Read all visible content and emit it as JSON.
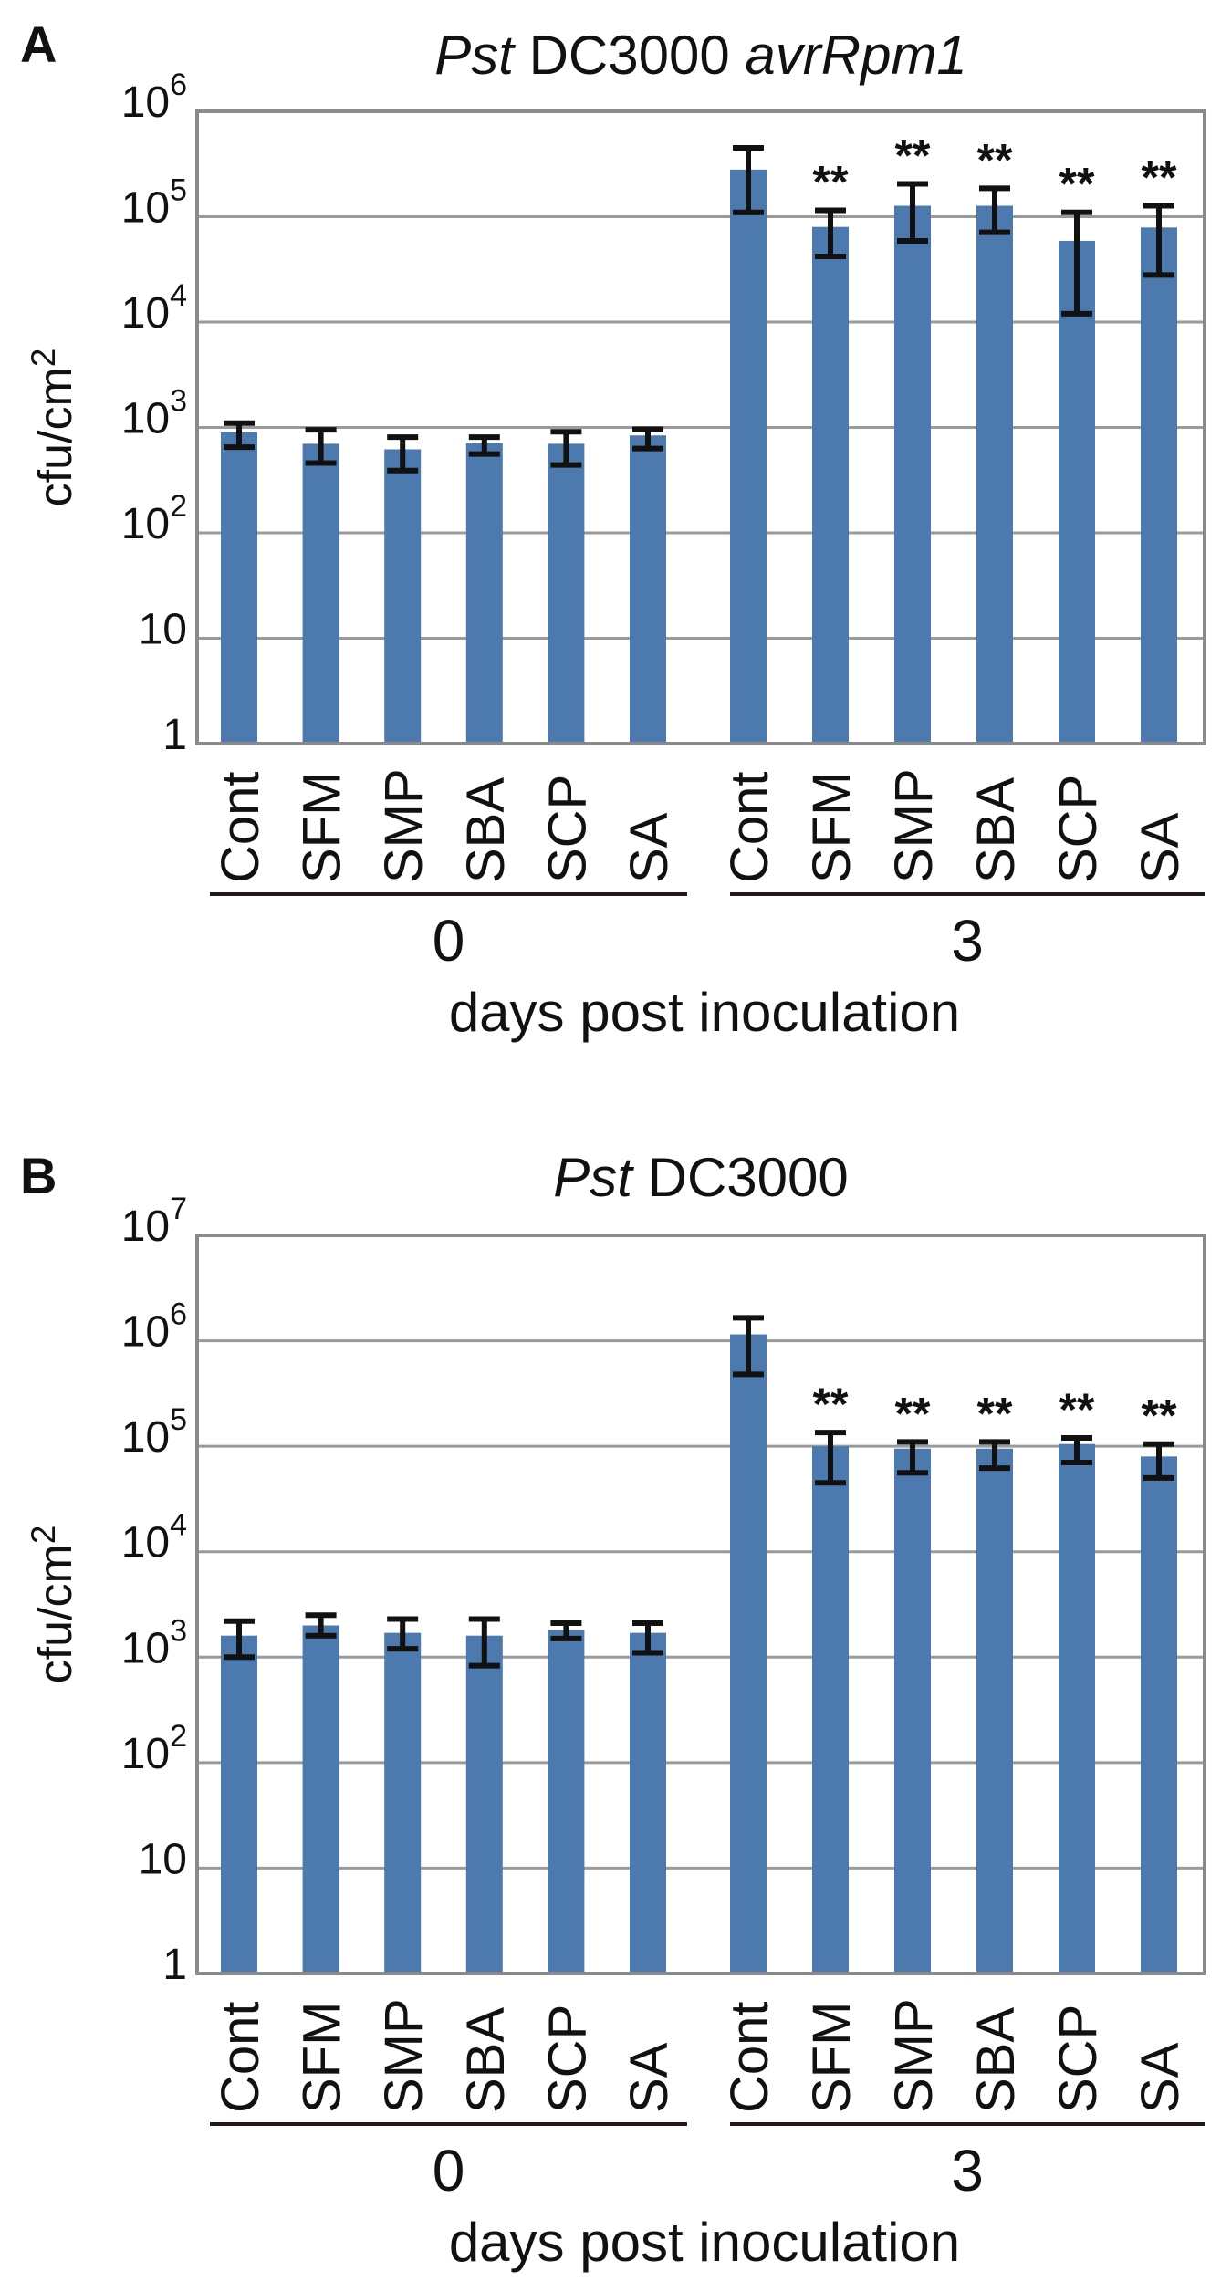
{
  "figure": {
    "units_note": "bacterial titer bar charts, log scale",
    "bar_color": "#4c7aae",
    "grid_color": "#9a9a9a",
    "frame_color": "#8a8a8a",
    "text_color": "#111111",
    "significance_marker": "**"
  },
  "chart_data": [
    {
      "type": "bar",
      "panel_label": "A",
      "title_segments": [
        {
          "text": "Pst",
          "italic": true
        },
        {
          "text": " DC3000 ",
          "italic": false
        },
        {
          "text": "avrRpm1",
          "italic": true
        }
      ],
      "ylabel_base": "cfu/cm",
      "ylabel_exp": "2",
      "xlabel": "days post inoculation",
      "y_axis": {
        "scale": "log",
        "min_exp": 0,
        "max_exp": 6,
        "tick_exponents": [
          6,
          5,
          4,
          3,
          2,
          1,
          0
        ]
      },
      "x_groups": [
        {
          "label": "0",
          "categories": [
            "Cont",
            "SFM",
            "SMP",
            "SBA",
            "SCP",
            "SA"
          ],
          "values": [
            900,
            700,
            620,
            710,
            700,
            840
          ],
          "err_lo": [
            650,
            460,
            390,
            560,
            440,
            630
          ],
          "err_hi": [
            1100,
            950,
            810,
            810,
            910,
            960
          ],
          "sig": [
            "",
            "",
            "",
            "",
            "",
            ""
          ]
        },
        {
          "label": "3",
          "categories": [
            "Cont",
            "SFM",
            "SMP",
            "SBA",
            "SCP",
            "SA"
          ],
          "values": [
            280000,
            80000,
            127000,
            127000,
            59000,
            79000
          ],
          "err_lo": [
            110000,
            42000,
            59000,
            71000,
            12000,
            28000
          ],
          "err_hi": [
            450000,
            115000,
            205000,
            186000,
            110000,
            127000
          ],
          "sig": [
            "",
            "**",
            "**",
            "**",
            "**",
            "**"
          ]
        }
      ]
    },
    {
      "type": "bar",
      "panel_label": "B",
      "title_segments": [
        {
          "text": "Pst",
          "italic": true
        },
        {
          "text": " DC3000",
          "italic": false
        }
      ],
      "ylabel_base": "cfu/cm",
      "ylabel_exp": "2",
      "xlabel": "days post inoculation",
      "y_axis": {
        "scale": "log",
        "min_exp": 0,
        "max_exp": 7,
        "tick_exponents": [
          7,
          6,
          5,
          4,
          3,
          2,
          1,
          0
        ]
      },
      "x_groups": [
        {
          "label": "0",
          "categories": [
            "Cont",
            "SFM",
            "SMP",
            "SBA",
            "SCP",
            "SA"
          ],
          "values": [
            1600,
            2000,
            1700,
            1600,
            1800,
            1700
          ],
          "err_lo": [
            1000,
            1600,
            1200,
            830,
            1500,
            1100
          ],
          "err_hi": [
            2200,
            2500,
            2300,
            2300,
            2100,
            2100
          ],
          "sig": [
            "",
            "",
            "",
            "",
            "",
            ""
          ]
        },
        {
          "label": "3",
          "categories": [
            "Cont",
            "SFM",
            "SMP",
            "SBA",
            "SCP",
            "SA"
          ],
          "values": [
            1150000,
            100000,
            95000,
            95000,
            105000,
            80000
          ],
          "err_lo": [
            480000,
            45000,
            56000,
            62000,
            70000,
            50000
          ],
          "err_hi": [
            1650000,
            135000,
            110000,
            110000,
            120000,
            105000
          ],
          "sig": [
            "",
            "**",
            "**",
            "**",
            "**",
            "**"
          ]
        }
      ]
    }
  ]
}
